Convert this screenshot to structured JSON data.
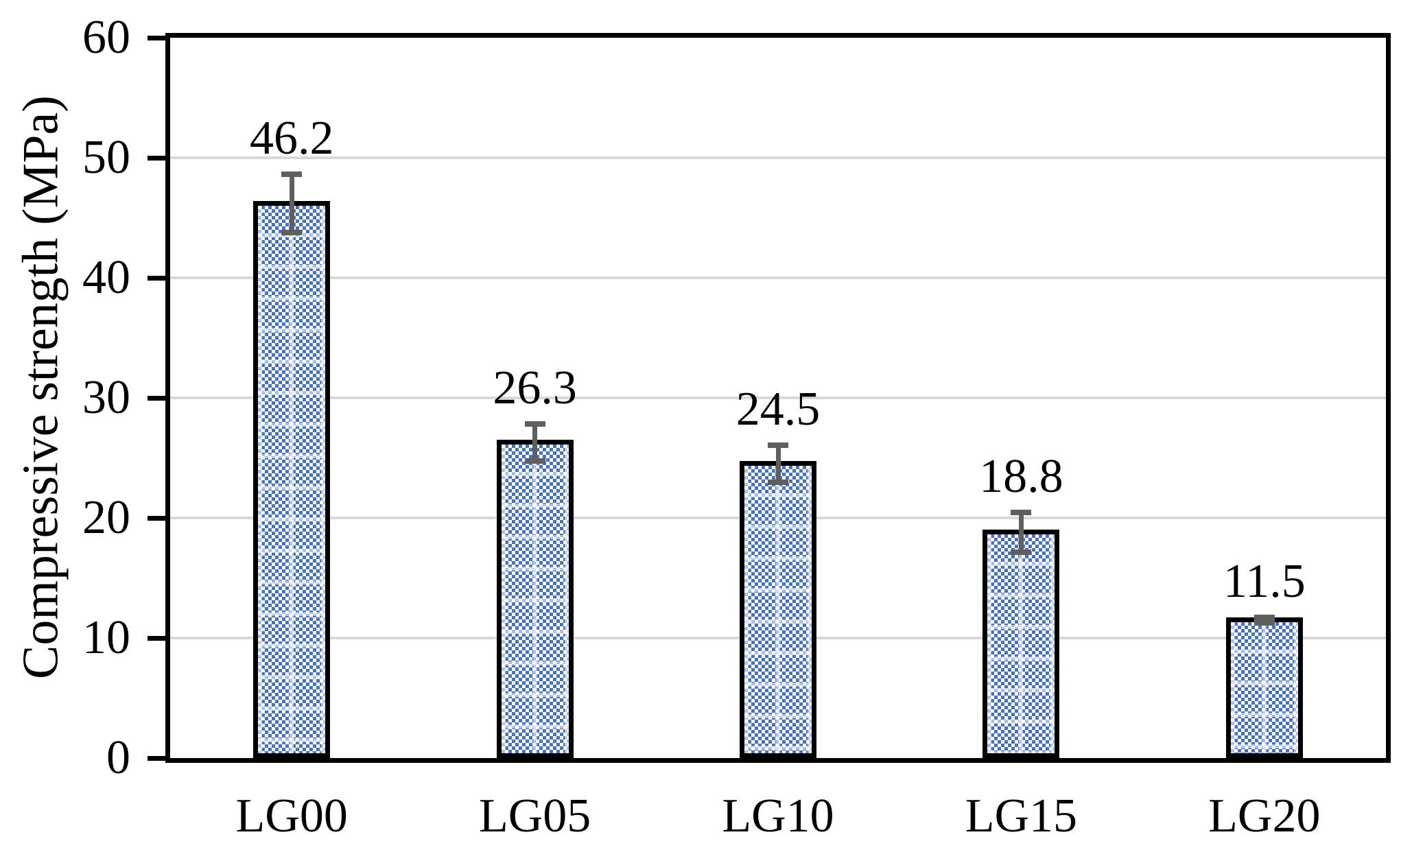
{
  "chart_data": {
    "type": "bar",
    "title": "",
    "xlabel": "",
    "ylabel": "Compressive strength (MPa)",
    "categories": [
      "LG00",
      "LG05",
      "LG10",
      "LG15",
      "LG20"
    ],
    "values": [
      46.2,
      26.3,
      24.5,
      18.8,
      11.5
    ],
    "value_labels": [
      "46.2",
      "26.3",
      "24.5",
      "18.8",
      "11.5"
    ],
    "errors": [
      2.5,
      1.6,
      1.6,
      1.7,
      0.3
    ],
    "ylim": [
      0,
      60
    ],
    "yticks": [
      0,
      10,
      20,
      30,
      40,
      50,
      60
    ],
    "grid": "horizontal-major",
    "legend": "none",
    "bar_fill_color": "#4472C4",
    "bar_pattern": "dotted-checker",
    "bar_border_color": "#000000",
    "gridline_color": "#D9D9D9",
    "error_bar_color": "#5F5F5F",
    "axis_color": "#000000",
    "text_color": "#000000"
  }
}
